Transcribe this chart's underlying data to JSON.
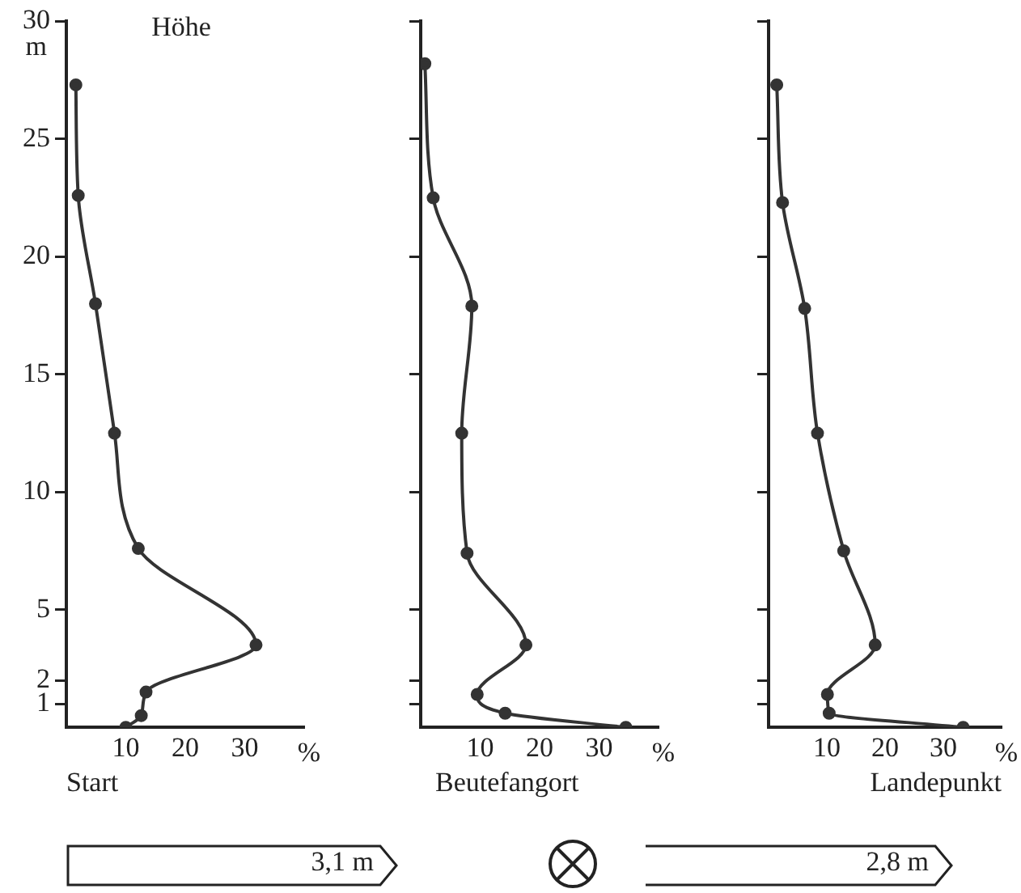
{
  "chart_data": [
    {
      "type": "line",
      "title": "Start",
      "subtitle": "Höhe",
      "ylabel": "m",
      "xlabel": "%",
      "marker": "circle",
      "xlim": [
        0,
        40
      ],
      "xticks": [
        10,
        20,
        30
      ],
      "ylim": [
        0,
        30
      ],
      "yticks": [
        1,
        2,
        5,
        10,
        15,
        20,
        25,
        30
      ],
      "annotations": [
        "3,1 m"
      ],
      "series": [
        {
          "color": "#333333",
          "x": [
            10,
            12.6,
            13.4,
            31.9,
            12.1,
            8.1,
            4.9,
            2,
            1.6
          ],
          "values": [
            0,
            0.5,
            1.5,
            3.5,
            7.6,
            12.5,
            18,
            22.6,
            27.3
          ]
        }
      ]
    },
    {
      "type": "line",
      "title": "Beutefangort",
      "xlabel": "%",
      "marker": "circle",
      "tick_labels": "x",
      "xlim": [
        0,
        40
      ],
      "xticks": [
        10,
        20,
        30
      ],
      "ylim": [
        0,
        30
      ],
      "yticks": [
        1,
        2,
        5,
        10,
        15,
        20,
        25,
        30
      ],
      "series": [
        {
          "color": "#333333",
          "x": [
            34.5,
            14.2,
            9.5,
            17.7,
            7.8,
            6.9,
            8.6,
            2.1,
            0.7
          ],
          "values": [
            0,
            0.6,
            1.4,
            3.5,
            7.4,
            12.5,
            17.9,
            22.5,
            28.2
          ]
        }
      ]
    },
    {
      "type": "line",
      "title": "Landepunkt",
      "xlabel": "%",
      "marker": "circle",
      "tick_labels": "x",
      "xlim": [
        0,
        40
      ],
      "xticks": [
        10,
        20,
        30
      ],
      "ylim": [
        0,
        30
      ],
      "yticks": [
        1,
        2,
        5,
        10,
        15,
        20,
        25,
        30
      ],
      "annotations": [
        "2,8 m"
      ],
      "series": [
        {
          "color": "#333333",
          "x": [
            33.4,
            10.4,
            10.1,
            18.3,
            12.9,
            8.4,
            6.2,
            2.4,
            1.4
          ],
          "values": [
            0,
            0.6,
            1.4,
            3.5,
            7.5,
            12.5,
            17.8,
            22.3,
            27.3
          ]
        }
      ]
    }
  ]
}
